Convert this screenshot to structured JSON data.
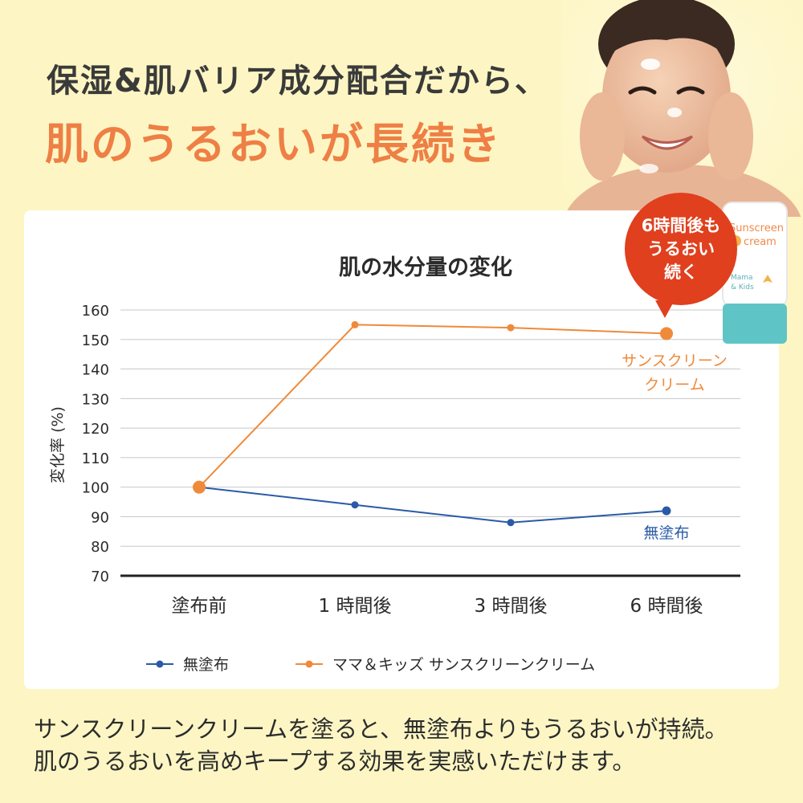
{
  "headline": {
    "line1": "保湿&肌バリア成分配合だから、",
    "line2": "肌のうるおいが長続き"
  },
  "bubble": {
    "lines": [
      "6時間後も",
      "うるおい",
      "続く"
    ]
  },
  "tube": {
    "brand_line1": "Sunscreen",
    "brand_line2": "cream",
    "logo_line1": "Mama",
    "logo_line2": "& Kids"
  },
  "colors": {
    "background": "#fdf6c4",
    "accent_orange": "#ee7f45",
    "series_blue": "#2a5aa6",
    "series_orange": "#ef8a3a",
    "bubble_red": "#e0401e"
  },
  "chart_data": {
    "type": "line",
    "title": "肌の水分量の変化",
    "ylabel": "変化率 (%)",
    "xlabel": "",
    "categories": [
      "塗布前",
      "1 時間後",
      "3 時間後",
      "6 時間後"
    ],
    "ylim": [
      70,
      160
    ],
    "yticks": [
      70,
      80,
      90,
      100,
      110,
      120,
      130,
      140,
      150,
      160
    ],
    "grid": true,
    "legend_position": "bottom",
    "series": [
      {
        "name": "無塗布",
        "label": "無塗布",
        "color": "#2a5aa6",
        "values": [
          100,
          94,
          88,
          92
        ]
      },
      {
        "name": "ママ＆キッズ サンスクリーンクリーム",
        "label_lines": [
          "サンスクリーン",
          "クリーム"
        ],
        "color": "#ef8a3a",
        "values": [
          100,
          155,
          154,
          152
        ]
      }
    ]
  },
  "footer": {
    "line1": "サンスクリーンクリームを塗ると、無塗布よりもうるおいが持続。",
    "line2": "肌のうるおいを高めキープする効果を実感いただけます。"
  }
}
